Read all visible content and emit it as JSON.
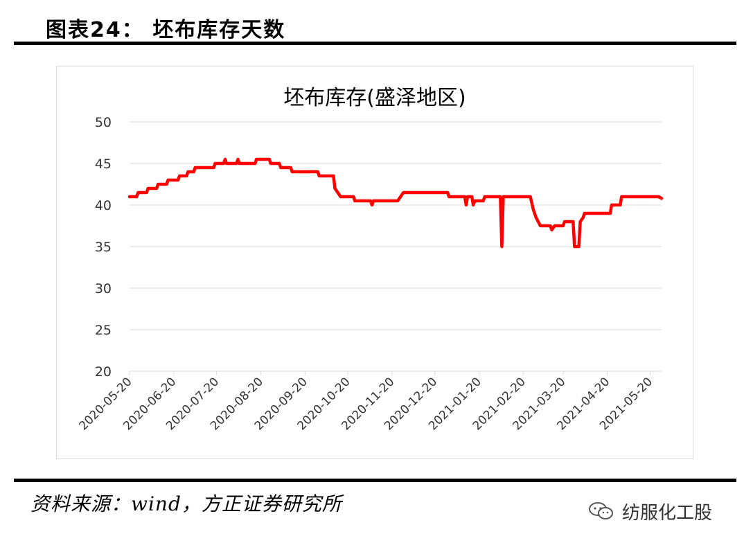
{
  "figure_title": "图表24： 坯布库存天数",
  "source_text": "资料来源：wind，方正证券研究所",
  "watermark": {
    "text": "纺服化工股",
    "icon": "wechat-icon"
  },
  "colors": {
    "line": "#ff0000",
    "grid": "#d9d9d9",
    "rules": "#000000"
  },
  "chart_data": {
    "type": "line",
    "title": "坯布库存(盛泽地区)",
    "xlabel": "",
    "ylabel": "",
    "ylim": [
      20,
      50
    ],
    "yticks": [
      20,
      25,
      30,
      35,
      40,
      45,
      50
    ],
    "xlim": [
      "2020-05-20",
      "2021-05-28"
    ],
    "xticks": [
      "2020-05-20",
      "2020-06-20",
      "2020-07-20",
      "2020-08-20",
      "2020-09-20",
      "2020-10-20",
      "2020-11-20",
      "2020-12-20",
      "2021-01-20",
      "2021-02-20",
      "2021-03-20",
      "2021-04-20",
      "2021-05-20"
    ],
    "grid": "horizontal",
    "legend": "none",
    "series": [
      {
        "color": "#ff0000",
        "points": [
          [
            "2020-05-20",
            41
          ],
          [
            "2020-05-25",
            41
          ],
          [
            "2020-05-26",
            41.5
          ],
          [
            "2020-06-01",
            41.5
          ],
          [
            "2020-06-02",
            42
          ],
          [
            "2020-06-08",
            42
          ],
          [
            "2020-06-09",
            42.5
          ],
          [
            "2020-06-15",
            42.5
          ],
          [
            "2020-06-16",
            43
          ],
          [
            "2020-06-23",
            43
          ],
          [
            "2020-06-24",
            43.5
          ],
          [
            "2020-06-29",
            43.5
          ],
          [
            "2020-06-30",
            44
          ],
          [
            "2020-07-04",
            44
          ],
          [
            "2020-07-05",
            44.5
          ],
          [
            "2020-07-18",
            44.5
          ],
          [
            "2020-07-19",
            45
          ],
          [
            "2020-07-25",
            45
          ],
          [
            "2020-07-26",
            45.5
          ],
          [
            "2020-07-27",
            45
          ],
          [
            "2020-08-03",
            45
          ],
          [
            "2020-08-04",
            45.5
          ],
          [
            "2020-08-05",
            45
          ],
          [
            "2020-08-16",
            45
          ],
          [
            "2020-08-17",
            45.5
          ],
          [
            "2020-08-26",
            45.5
          ],
          [
            "2020-08-27",
            45
          ],
          [
            "2020-09-02",
            45
          ],
          [
            "2020-09-03",
            44.5
          ],
          [
            "2020-09-10",
            44.5
          ],
          [
            "2020-09-11",
            44
          ],
          [
            "2020-09-29",
            44
          ],
          [
            "2020-09-30",
            43.5
          ],
          [
            "2020-10-10",
            43.5
          ],
          [
            "2020-10-11",
            42
          ],
          [
            "2020-10-13",
            41.5
          ],
          [
            "2020-10-15",
            41
          ],
          [
            "2020-10-24",
            41
          ],
          [
            "2020-10-25",
            40.5
          ],
          [
            "2020-11-05",
            40.5
          ],
          [
            "2020-11-06",
            40
          ],
          [
            "2020-11-07",
            40.5
          ],
          [
            "2020-11-24",
            40.5
          ],
          [
            "2020-11-26",
            41
          ],
          [
            "2020-11-28",
            41.5
          ],
          [
            "2020-12-29",
            41.5
          ],
          [
            "2020-12-30",
            41
          ],
          [
            "2021-01-10",
            41
          ],
          [
            "2021-01-11",
            40
          ],
          [
            "2021-01-12",
            41
          ],
          [
            "2021-01-15",
            41
          ],
          [
            "2021-01-16",
            40
          ],
          [
            "2021-01-17",
            40.5
          ],
          [
            "2021-01-23",
            40.5
          ],
          [
            "2021-01-24",
            41
          ],
          [
            "2021-02-04",
            41
          ],
          [
            "2021-02-05",
            35
          ],
          [
            "2021-02-06",
            41
          ],
          [
            "2021-02-25",
            41
          ],
          [
            "2021-02-27",
            39.5
          ],
          [
            "2021-03-01",
            38.5
          ],
          [
            "2021-03-04",
            37.5
          ],
          [
            "2021-03-11",
            37.5
          ],
          [
            "2021-03-12",
            37
          ],
          [
            "2021-03-14",
            37.5
          ],
          [
            "2021-03-20",
            37.5
          ],
          [
            "2021-03-21",
            38
          ],
          [
            "2021-03-27",
            38
          ],
          [
            "2021-03-28",
            35
          ],
          [
            "2021-03-31",
            35
          ],
          [
            "2021-04-01",
            38
          ],
          [
            "2021-04-03",
            38.5
          ],
          [
            "2021-04-04",
            39
          ],
          [
            "2021-04-22",
            39
          ],
          [
            "2021-04-23",
            40
          ],
          [
            "2021-04-29",
            40
          ],
          [
            "2021-04-30",
            41
          ],
          [
            "2021-05-26",
            41
          ],
          [
            "2021-05-28",
            40.8
          ]
        ]
      }
    ]
  }
}
